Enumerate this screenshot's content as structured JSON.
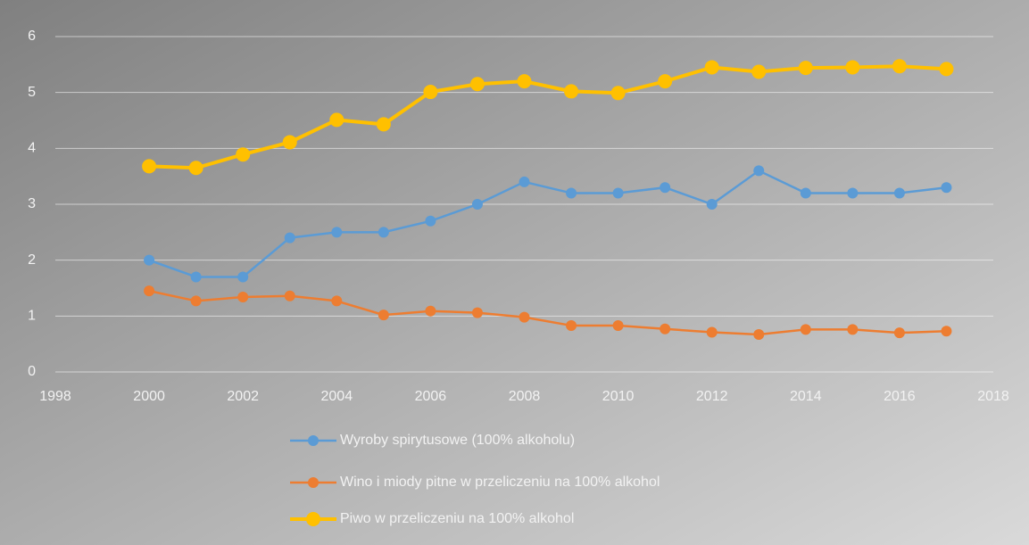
{
  "chart_data": {
    "type": "line",
    "x": [
      2000,
      2001,
      2002,
      2003,
      2004,
      2005,
      2006,
      2007,
      2008,
      2009,
      2010,
      2011,
      2012,
      2013,
      2014,
      2015,
      2016,
      2017
    ],
    "series": [
      {
        "name": "Wyroby spirytusowe (100% alkoholu)",
        "color": "#5b9bd5",
        "values": [
          2.0,
          1.7,
          1.7,
          2.4,
          2.5,
          2.5,
          2.7,
          3.0,
          3.4,
          3.2,
          3.2,
          3.3,
          3.0,
          3.6,
          3.2,
          3.2,
          3.2,
          3.3
        ]
      },
      {
        "name": "Wino i miody pitne w przeliczeniu na 100% alkohol",
        "color": "#ed7d31",
        "values": [
          1.45,
          1.27,
          1.34,
          1.36,
          1.27,
          1.02,
          1.09,
          1.06,
          0.98,
          0.83,
          0.83,
          0.77,
          0.71,
          0.67,
          0.76,
          0.76,
          0.7,
          0.73
        ]
      },
      {
        "name": "Piwo w przeliczeniu na 100% alkohol",
        "color": "#ffc000",
        "values": [
          3.68,
          3.65,
          3.89,
          4.11,
          4.51,
          4.43,
          5.01,
          5.15,
          5.2,
          5.02,
          4.99,
          5.2,
          5.45,
          5.37,
          5.44,
          5.45,
          5.47,
          5.42
        ]
      }
    ],
    "xlim": [
      1998,
      2018
    ],
    "xticks": [
      1998,
      2000,
      2002,
      2004,
      2006,
      2008,
      2010,
      2012,
      2014,
      2016,
      2018
    ],
    "ylim": [
      0,
      6
    ],
    "yticks": [
      0,
      1,
      2,
      3,
      4,
      5,
      6
    ],
    "grid": true,
    "legend": "bottom"
  }
}
